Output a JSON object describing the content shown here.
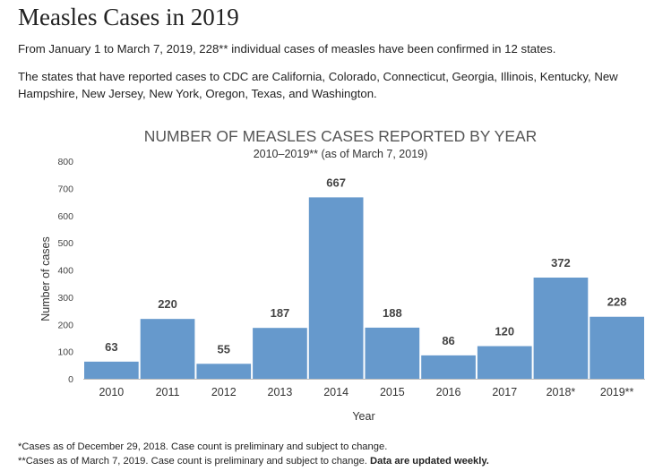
{
  "page": {
    "title": "Measles Cases in 2019",
    "intro_1": "From January 1 to March 7, 2019, 228** individual cases of measles have been confirmed in 12 states.",
    "intro_2": "The states that have reported cases to CDC are California, Colorado, Connecticut, Georgia, Illinois, Kentucky, New Hampshire, New Jersey, New York, Oregon, Texas, and Washington."
  },
  "footnotes": {
    "note_1": "*Cases as of December 29, 2018. Case count is preliminary and subject to change.",
    "note_2_prefix": "**Cases as of March 7, 2019. Case count is preliminary and subject to change.",
    "note_2_bold": "Data are updated weekly."
  },
  "chart_data": {
    "type": "bar",
    "title": "NUMBER OF MEASLES CASES REPORTED BY YEAR",
    "subtitle": "2010–2019** (as of March 7, 2019)",
    "xlabel": "Year",
    "ylabel": "Number of cases",
    "ylim": [
      0,
      800
    ],
    "yticks": [
      0,
      100,
      200,
      300,
      400,
      500,
      600,
      700,
      800
    ],
    "categories": [
      "2010",
      "2011",
      "2012",
      "2013",
      "2014",
      "2015",
      "2016",
      "2017",
      "2018*",
      "2019**"
    ],
    "values": [
      63,
      220,
      55,
      187,
      667,
      188,
      86,
      120,
      372,
      228
    ],
    "bar_color": "#6699cc",
    "grid": false
  }
}
